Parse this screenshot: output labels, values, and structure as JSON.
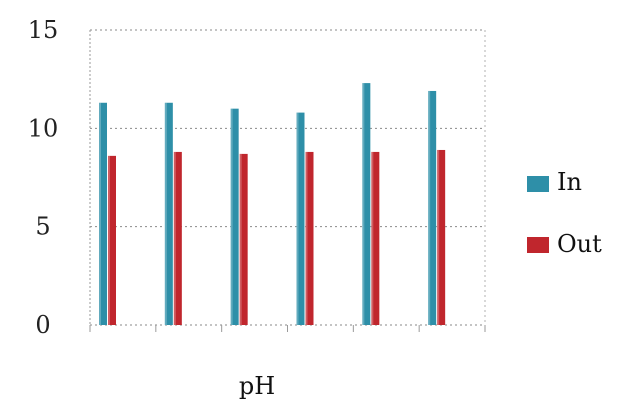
{
  "chart_data": {
    "type": "bar",
    "title": "",
    "xlabel": "pH",
    "ylabel": "",
    "ylim": [
      0,
      15
    ],
    "yticks": [
      0,
      5,
      10,
      15
    ],
    "grid": true,
    "legend_position": "right",
    "categories": [
      "",
      "",
      "",
      "",
      "",
      ""
    ],
    "series": [
      {
        "name": "In",
        "color": "#2E8FA8",
        "values": [
          11.3,
          11.3,
          11.0,
          10.8,
          12.3,
          11.9
        ]
      },
      {
        "name": "Out",
        "color": "#C0262D",
        "values": [
          8.6,
          8.8,
          8.7,
          8.8,
          8.8,
          8.9
        ]
      }
    ]
  }
}
